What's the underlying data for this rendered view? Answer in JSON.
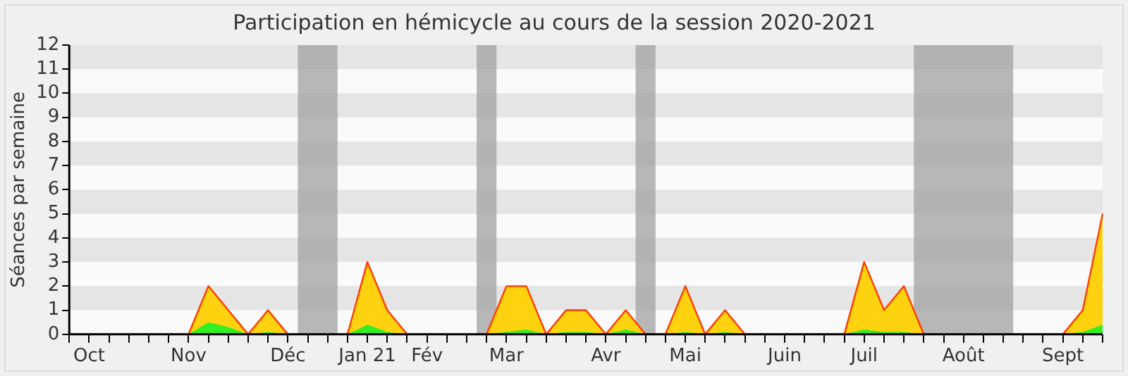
{
  "chart_data": {
    "type": "area",
    "title": "Participation en hémicycle au cours de la session 2020-2021",
    "ylabel": "Séances par semaine",
    "categories": [
      null,
      "Oct",
      null,
      null,
      null,
      null,
      "Nov",
      null,
      null,
      null,
      null,
      "Déc",
      null,
      null,
      null,
      "Jan 21",
      null,
      null,
      "Fév",
      null,
      null,
      null,
      "Mar",
      null,
      null,
      null,
      null,
      "Avr",
      null,
      null,
      null,
      "Mai",
      null,
      null,
      null,
      null,
      "Juin",
      null,
      null,
      null,
      "Juil",
      null,
      null,
      null,
      null,
      "Août",
      null,
      null,
      null,
      null,
      "Sept",
      null,
      null
    ],
    "series": [
      {
        "color": "#ffd20f",
        "values": [
          0,
          0,
          0,
          0,
          0,
          0,
          0,
          2,
          1,
          0,
          1,
          0,
          0,
          0,
          0,
          3,
          1,
          0,
          0,
          0,
          0,
          0,
          2,
          2,
          0,
          1,
          1,
          0,
          1,
          0,
          0,
          2,
          0,
          1,
          0,
          0,
          0,
          0,
          0,
          0,
          3,
          1,
          2,
          0,
          0,
          0,
          0,
          0,
          0,
          0,
          0,
          1,
          5
        ]
      },
      {
        "color": "#33ee22",
        "values": [
          0,
          0,
          0,
          0,
          0,
          0,
          0,
          0.5,
          0.3,
          0,
          0.1,
          0,
          0,
          0,
          0,
          0.4,
          0.1,
          0,
          0,
          0,
          0,
          0,
          0.1,
          0.2,
          0,
          0.1,
          0.1,
          0,
          0.2,
          0,
          0,
          0.1,
          0,
          0.1,
          0,
          0,
          0,
          0,
          0,
          0,
          0.2,
          0.1,
          0.1,
          0,
          0,
          0,
          0,
          0,
          0,
          0,
          0,
          0.1,
          0.4
        ]
      }
    ],
    "ylim": [
      0,
      12
    ],
    "yticks": [
      0,
      1,
      2,
      3,
      4,
      5,
      6,
      7,
      8,
      9,
      10,
      11,
      12
    ]
  }
}
